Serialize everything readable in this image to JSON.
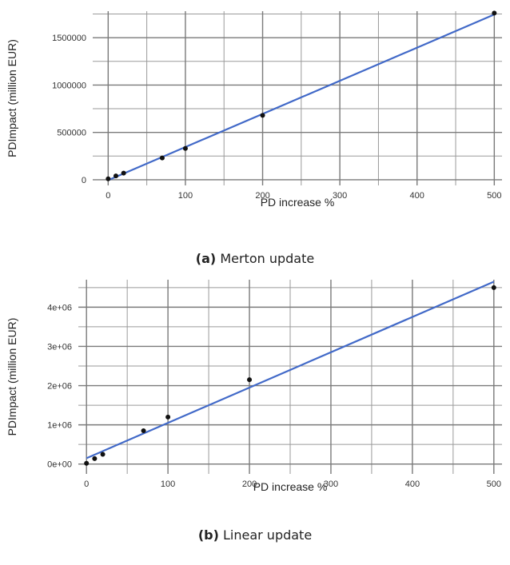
{
  "chart_data": [
    {
      "type": "scatter",
      "caption_tag": "(a)",
      "caption_text": "Merton update",
      "xlabel": "PD increase %",
      "ylabel": "PDImpact (million EUR)",
      "xlim": [
        -20,
        510
      ],
      "ylim": [
        -60000,
        1780000
      ],
      "x_ticks": [
        0,
        100,
        200,
        300,
        400,
        500
      ],
      "x_tick_labels": [
        "0",
        "100",
        "200",
        "300",
        "400",
        "500"
      ],
      "y_ticks": [
        0,
        500000,
        1000000,
        1500000
      ],
      "y_tick_labels": [
        "0",
        "500000",
        "1000000",
        "1500000"
      ],
      "grid": true,
      "points": {
        "x": [
          0,
          10,
          20,
          70,
          100,
          200,
          500
        ],
        "y": [
          10000,
          40000,
          70000,
          230000,
          330000,
          680000,
          1760000
        ]
      },
      "fit_line": {
        "x": [
          0,
          500
        ],
        "y": [
          -5000,
          1745000
        ],
        "color": "#4169c8"
      },
      "point_color": "#111111"
    },
    {
      "type": "scatter",
      "caption_tag": "(b)",
      "caption_text": "Linear update",
      "xlabel": "PD increase %",
      "ylabel": "PDImpact (million EUR)",
      "xlim": [
        -10,
        510
      ],
      "ylim": [
        -250000,
        4700000
      ],
      "x_ticks": [
        0,
        100,
        200,
        300,
        400,
        500
      ],
      "x_tick_labels": [
        "0",
        "100",
        "200",
        "300",
        "400",
        "500"
      ],
      "y_ticks": [
        0,
        1000000,
        2000000,
        3000000,
        4000000
      ],
      "y_tick_labels": [
        "0e+00",
        "1e+06",
        "2e+06",
        "3e+06",
        "4e+06"
      ],
      "grid": true,
      "points": {
        "x": [
          0,
          10,
          20,
          70,
          100,
          200,
          500
        ],
        "y": [
          20000,
          140000,
          250000,
          850000,
          1200000,
          2150000,
          4500000
        ]
      },
      "fit_line": {
        "x": [
          0,
          500
        ],
        "y": [
          150000,
          4650000
        ],
        "color": "#4169c8"
      },
      "point_color": "#111111"
    }
  ]
}
